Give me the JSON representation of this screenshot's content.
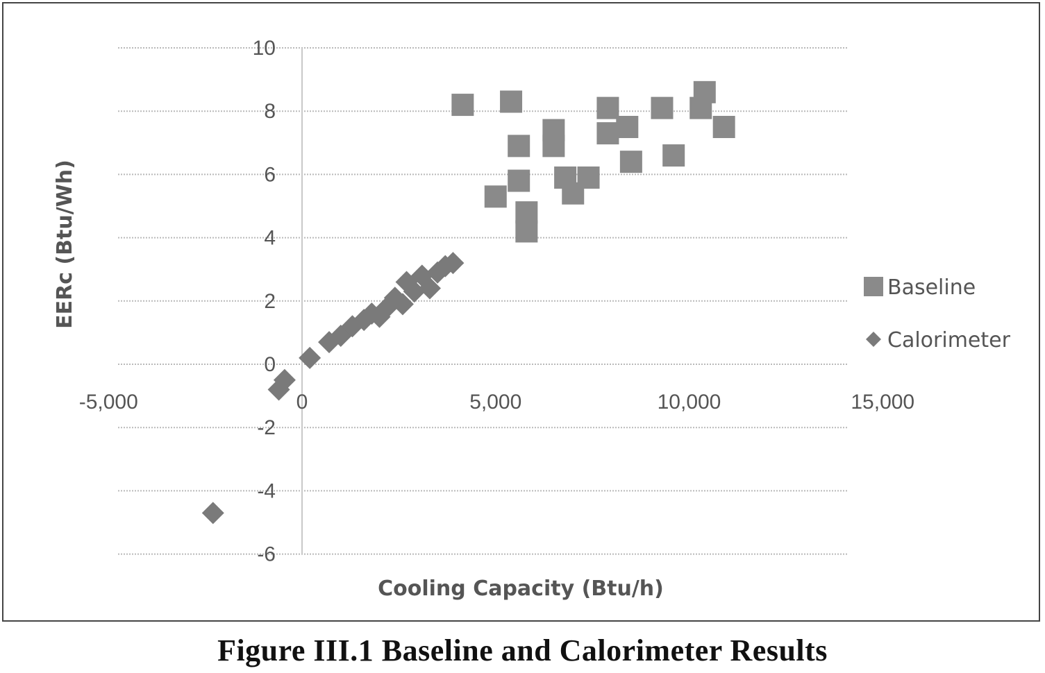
{
  "caption": "Figure III.1 Baseline and Calorimeter Results",
  "chart_data": {
    "type": "scatter",
    "title": "",
    "xlabel": "Cooling Capacity (Btu/h)",
    "ylabel": "EERc (Btu/Wh)",
    "xlim": [
      -5000,
      15000
    ],
    "ylim": [
      -6,
      10
    ],
    "x_ticks": [
      -5000,
      0,
      5000,
      10000,
      15000
    ],
    "x_tick_labels": [
      "-5,000",
      "0",
      "5,000",
      "10,000",
      "15,000"
    ],
    "y_ticks": [
      -6,
      -4,
      -2,
      0,
      2,
      4,
      6,
      8,
      10
    ],
    "y_tick_labels": [
      "-6",
      "-4",
      "-2",
      "0",
      "2",
      "4",
      "6",
      "8",
      "10"
    ],
    "grid": "horizontal dotted",
    "legend_position": "right",
    "series": [
      {
        "name": "Baseline",
        "marker": "square",
        "color": "#8a8a8a",
        "points": [
          [
            4150,
            8.2
          ],
          [
            5400,
            8.3
          ],
          [
            5600,
            6.9
          ],
          [
            5600,
            5.8
          ],
          [
            5000,
            5.3
          ],
          [
            5800,
            4.8
          ],
          [
            5800,
            4.2
          ],
          [
            6500,
            7.4
          ],
          [
            6500,
            6.9
          ],
          [
            6800,
            5.9
          ],
          [
            7000,
            5.4
          ],
          [
            7400,
            5.9
          ],
          [
            7900,
            8.1
          ],
          [
            7900,
            7.3
          ],
          [
            8400,
            7.5
          ],
          [
            8500,
            6.4
          ],
          [
            9300,
            8.1
          ],
          [
            9600,
            6.6
          ],
          [
            10300,
            8.1
          ],
          [
            10400,
            8.6
          ],
          [
            10900,
            7.5
          ]
        ]
      },
      {
        "name": "Calorimeter",
        "marker": "diamond",
        "color": "#7a7a7a",
        "points": [
          [
            -2300,
            -4.7
          ],
          [
            -600,
            -0.8
          ],
          [
            -450,
            -0.5
          ],
          [
            200,
            0.2
          ],
          [
            700,
            0.7
          ],
          [
            1000,
            0.9
          ],
          [
            1300,
            1.2
          ],
          [
            1600,
            1.4
          ],
          [
            1800,
            1.6
          ],
          [
            2000,
            1.5
          ],
          [
            2200,
            1.8
          ],
          [
            2400,
            2.1
          ],
          [
            2600,
            1.9
          ],
          [
            2700,
            2.6
          ],
          [
            2900,
            2.3
          ],
          [
            3100,
            2.8
          ],
          [
            3300,
            2.4
          ],
          [
            3500,
            2.9
          ],
          [
            3700,
            3.1
          ],
          [
            3900,
            3.2
          ]
        ]
      }
    ]
  }
}
